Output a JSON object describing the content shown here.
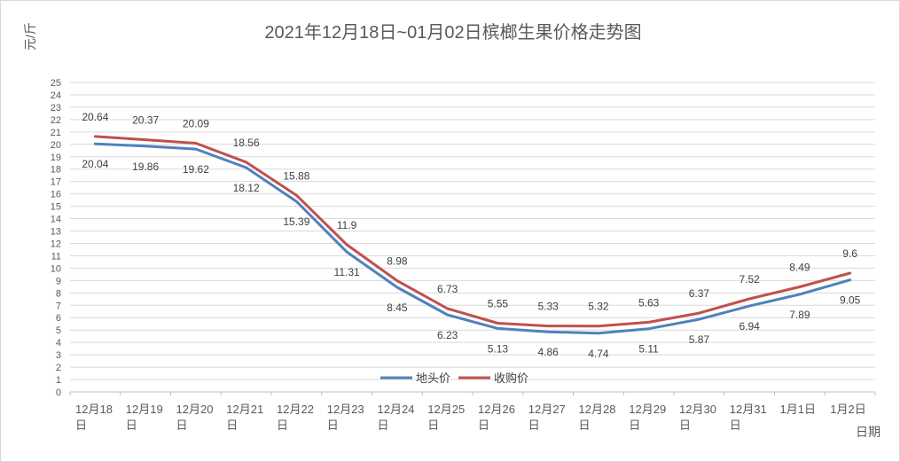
{
  "chart_data": {
    "type": "line",
    "title": "2021年12月18日~01月02日槟榔生果价格走势图",
    "ylabel": "元/斤",
    "xlabel": "日期",
    "ylim": [
      0,
      25
    ],
    "ytick_step": 1,
    "grid": true,
    "legend_position": "bottom-center",
    "categories": [
      [
        "12月18",
        "日"
      ],
      [
        "12月19",
        "日"
      ],
      [
        "12月20",
        "日"
      ],
      [
        "12月21",
        "日"
      ],
      [
        "12月22",
        "日"
      ],
      [
        "12月23",
        "日"
      ],
      [
        "12月24",
        "日"
      ],
      [
        "12月25",
        "日"
      ],
      [
        "12月26",
        "日"
      ],
      [
        "12月27",
        "日"
      ],
      [
        "12月28",
        "日"
      ],
      [
        "12月29",
        "日"
      ],
      [
        "12月30",
        "日"
      ],
      [
        "12月31",
        "日"
      ],
      [
        "1月1日",
        ""
      ],
      [
        "1月2日",
        ""
      ]
    ],
    "series": [
      {
        "name": "地头价",
        "color": "#4f81bd",
        "label_position": "below",
        "values": [
          20.04,
          19.86,
          19.62,
          18.12,
          15.39,
          11.31,
          8.45,
          6.23,
          5.13,
          4.86,
          4.74,
          5.11,
          5.87,
          6.94,
          7.89,
          9.05
        ]
      },
      {
        "name": "收购价",
        "color": "#c0504d",
        "label_position": "above",
        "values": [
          20.64,
          20.37,
          20.09,
          18.56,
          15.88,
          11.9,
          8.98,
          6.73,
          5.55,
          5.33,
          5.32,
          5.63,
          6.37,
          7.52,
          8.49,
          9.6
        ]
      }
    ]
  }
}
